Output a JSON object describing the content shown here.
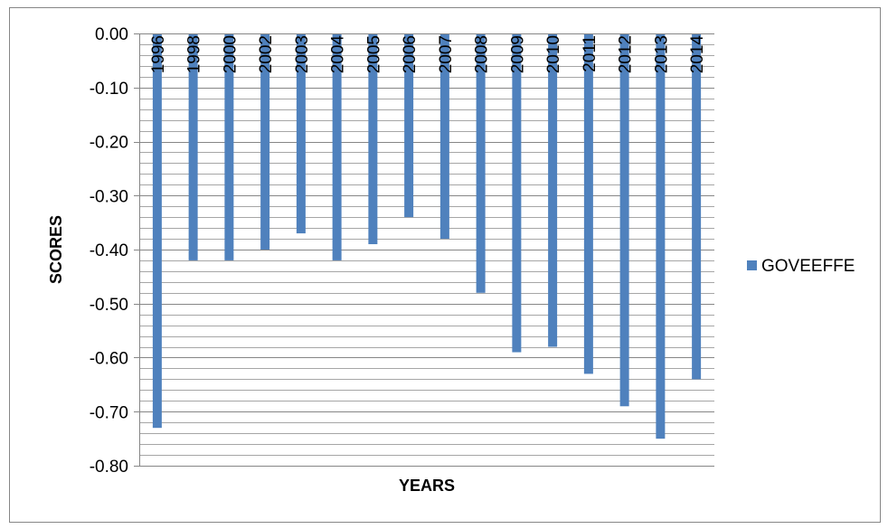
{
  "chart_data": {
    "type": "bar",
    "categories": [
      "1996",
      "1998",
      "2000",
      "2002",
      "2003",
      "2004",
      "2005",
      "2006",
      "2007",
      "2008",
      "2009",
      "2010",
      "2011",
      "2012",
      "2013",
      "2014"
    ],
    "series": [
      {
        "name": "GOVEEFFE",
        "color": "#4f81bd",
        "values": [
          -0.73,
          -0.42,
          -0.42,
          -0.4,
          -0.37,
          -0.42,
          -0.39,
          -0.34,
          -0.38,
          -0.48,
          -0.59,
          -0.58,
          -0.63,
          -0.69,
          -0.75,
          -0.64
        ]
      }
    ],
    "xlabel": "YEARS",
    "ylabel": "SCORES",
    "ylim": [
      -0.8,
      0.0
    ],
    "yticks": [
      "0.00",
      "-0.10",
      "-0.20",
      "-0.30",
      "-0.40",
      "-0.50",
      "-0.60",
      "-0.70",
      "-0.80"
    ],
    "grid": "horizontal major and minor",
    "legend_position": "right"
  }
}
